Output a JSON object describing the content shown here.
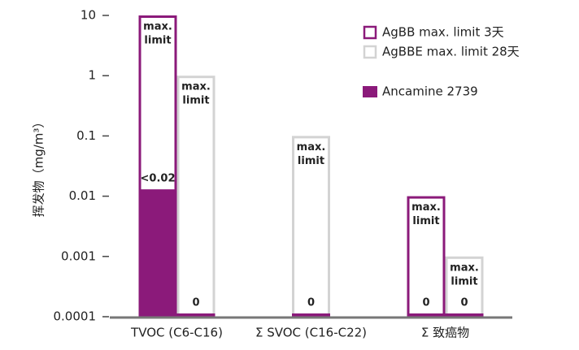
{
  "chart_data": {
    "type": "bar",
    "log_scale": true,
    "y_label": "挥发物（mg/m³）",
    "categories": [
      "TVOC (C6-C16)",
      "Σ SVOC (C16-C22)",
      "Σ 致癌物"
    ],
    "ylim": [
      0.0001,
      10
    ],
    "yticks": [
      10,
      1,
      0.1,
      0.01,
      0.001,
      0.0001
    ],
    "bar_note": [
      "max.",
      "limit"
    ],
    "series": [
      {
        "name": "AgBB max. limit 3天",
        "color": "#8b1a7a",
        "values": [
          10,
          null,
          0.01
        ]
      },
      {
        "name": "AgBBE max. limit 28天",
        "color": "#d3d3d3",
        "values": [
          1,
          0.1,
          0.001
        ]
      }
    ],
    "measured": {
      "name": "Ancamine 2739",
      "color": "#8b1a7a",
      "label_color": "#e8963a",
      "values": [
        [
          0.013,
          0
        ],
        [
          null,
          0
        ],
        [
          0,
          0
        ]
      ],
      "value_labels": [
        [
          "<0.02",
          null
        ],
        [
          null,
          null
        ],
        [
          null,
          null
        ]
      ]
    }
  }
}
